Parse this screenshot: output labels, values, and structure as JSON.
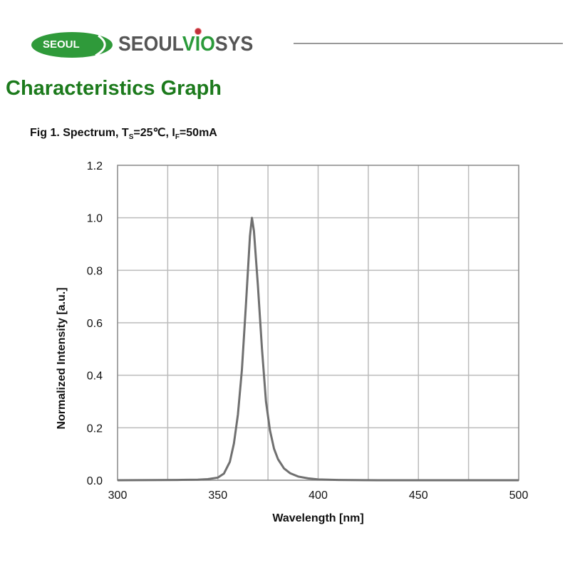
{
  "header": {
    "logo_badge_text": "SEOUL",
    "brand_part1": "SEOUL",
    "brand_part2": "VIO",
    "brand_part3": "SYS",
    "brand_colors": {
      "green": "#2a9a3a",
      "gray": "#555555",
      "red": "#c0303a"
    }
  },
  "section_title": "Characteristics Graph",
  "figure": {
    "title_prefix": "Fig 1. Spectrum, T",
    "title_sub1": "S",
    "title_mid": "=25℃, I",
    "title_sub2": "F",
    "title_suffix": "=50mA"
  },
  "chart_data": {
    "type": "line",
    "xlabel": "Wavelength [nm]",
    "ylabel": "Normalized Intensity [a.u.]",
    "xlim": [
      300,
      500
    ],
    "ylim": [
      0,
      1.2
    ],
    "xticks": [
      300,
      350,
      400,
      450,
      500
    ],
    "xtick_labels": [
      "300",
      "350",
      "400",
      "450",
      "500"
    ],
    "yticks": [
      0,
      0.2,
      0.4,
      0.6,
      0.8,
      1.0,
      1.2
    ],
    "ytick_labels": [
      "0.0",
      "0.2",
      "0.4",
      "0.6",
      "0.8",
      "1.0",
      "1.2"
    ],
    "grid": true,
    "grid_step_x": 25,
    "line_color": "#707070",
    "series": [
      {
        "x": [
          300,
          330,
          340,
          345,
          350,
          353,
          356,
          358,
          360,
          362,
          364,
          366,
          367,
          368,
          370,
          372,
          374,
          376,
          378,
          380,
          383,
          386,
          390,
          395,
          400,
          410,
          430,
          450,
          500
        ],
        "y": [
          0,
          0.001,
          0.002,
          0.004,
          0.01,
          0.025,
          0.07,
          0.14,
          0.25,
          0.42,
          0.67,
          0.93,
          1.0,
          0.95,
          0.74,
          0.5,
          0.3,
          0.19,
          0.12,
          0.08,
          0.045,
          0.027,
          0.014,
          0.007,
          0.003,
          0.001,
          0,
          0,
          0
        ]
      }
    ]
  }
}
